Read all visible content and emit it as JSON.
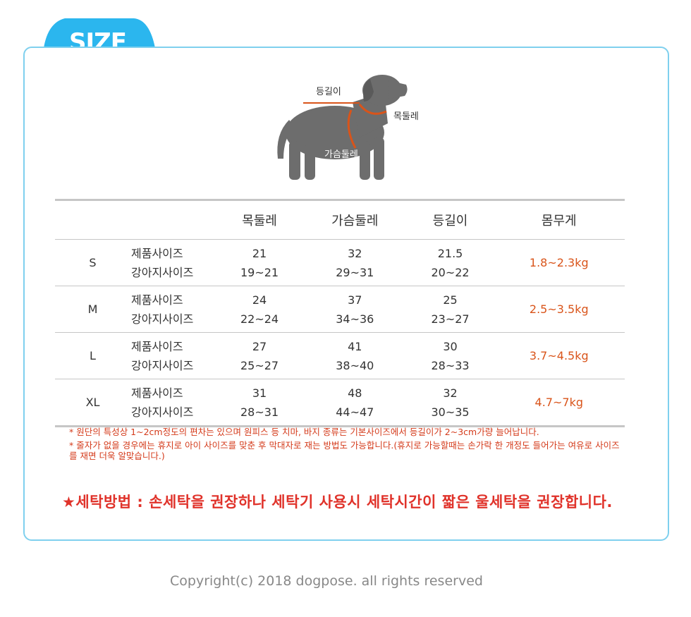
{
  "tab": {
    "label": "SIZE",
    "color": "#2bb6ee"
  },
  "diagram": {
    "back_length": "등길이",
    "neck": "목둘레",
    "chest": "가슴둘레"
  },
  "table": {
    "headers": [
      "",
      "",
      "목둘레",
      "가슴둘레",
      "등길이",
      "몸무게"
    ],
    "row_labels": {
      "product": "제품사이즈",
      "dog": "강아지사이즈"
    },
    "rows": [
      {
        "size": "S",
        "neck": [
          "21",
          "19~21"
        ],
        "chest": [
          "32",
          "29~31"
        ],
        "back": [
          "21.5",
          "20~22"
        ],
        "weight": "1.8~2.3kg"
      },
      {
        "size": "M",
        "neck": [
          "24",
          "22~24"
        ],
        "chest": [
          "37",
          "34~36"
        ],
        "back": [
          "25",
          "23~27"
        ],
        "weight": "2.5~3.5kg"
      },
      {
        "size": "L",
        "neck": [
          "27",
          "25~27"
        ],
        "chest": [
          "41",
          "38~40"
        ],
        "back": [
          "30",
          "28~33"
        ],
        "weight": "3.7~4.5kg"
      },
      {
        "size": "XL",
        "neck": [
          "31",
          "28~31"
        ],
        "chest": [
          "48",
          "44~47"
        ],
        "back": [
          "32",
          "30~35"
        ],
        "weight": "4.7~7kg"
      }
    ]
  },
  "notes": [
    "* 원단의 특성상 1~2cm정도의 편차는 있으며 원피스 등 치마, 바지 종류는 기본사이즈에서 등길이가 2~3cm가량 늘어납니다.",
    "* 줄자가 없을 경우에는 휴지로 아이 사이즈를 맞춘 후 막대자로 재는 방법도 가능합니다.(휴지로 가능할때는 손가락 한 개정도 들어가는 여유로 사이즈를 재면 더욱 알맞습니다.)"
  ],
  "wash": "★세탁방법 : 손세탁을 권장하나 세탁기 사용시 세탁시간이 짧은 울세탁을 권장합니다.",
  "copyright": "Copyright(c) 2018 dogpose. all rights reserved",
  "colors": {
    "accent": "#2bb6ee",
    "border": "#7fd0ee",
    "weight": "#d9541a",
    "notes": "#d43a1a",
    "wash": "#e0322a",
    "measure": "#d9541a"
  }
}
